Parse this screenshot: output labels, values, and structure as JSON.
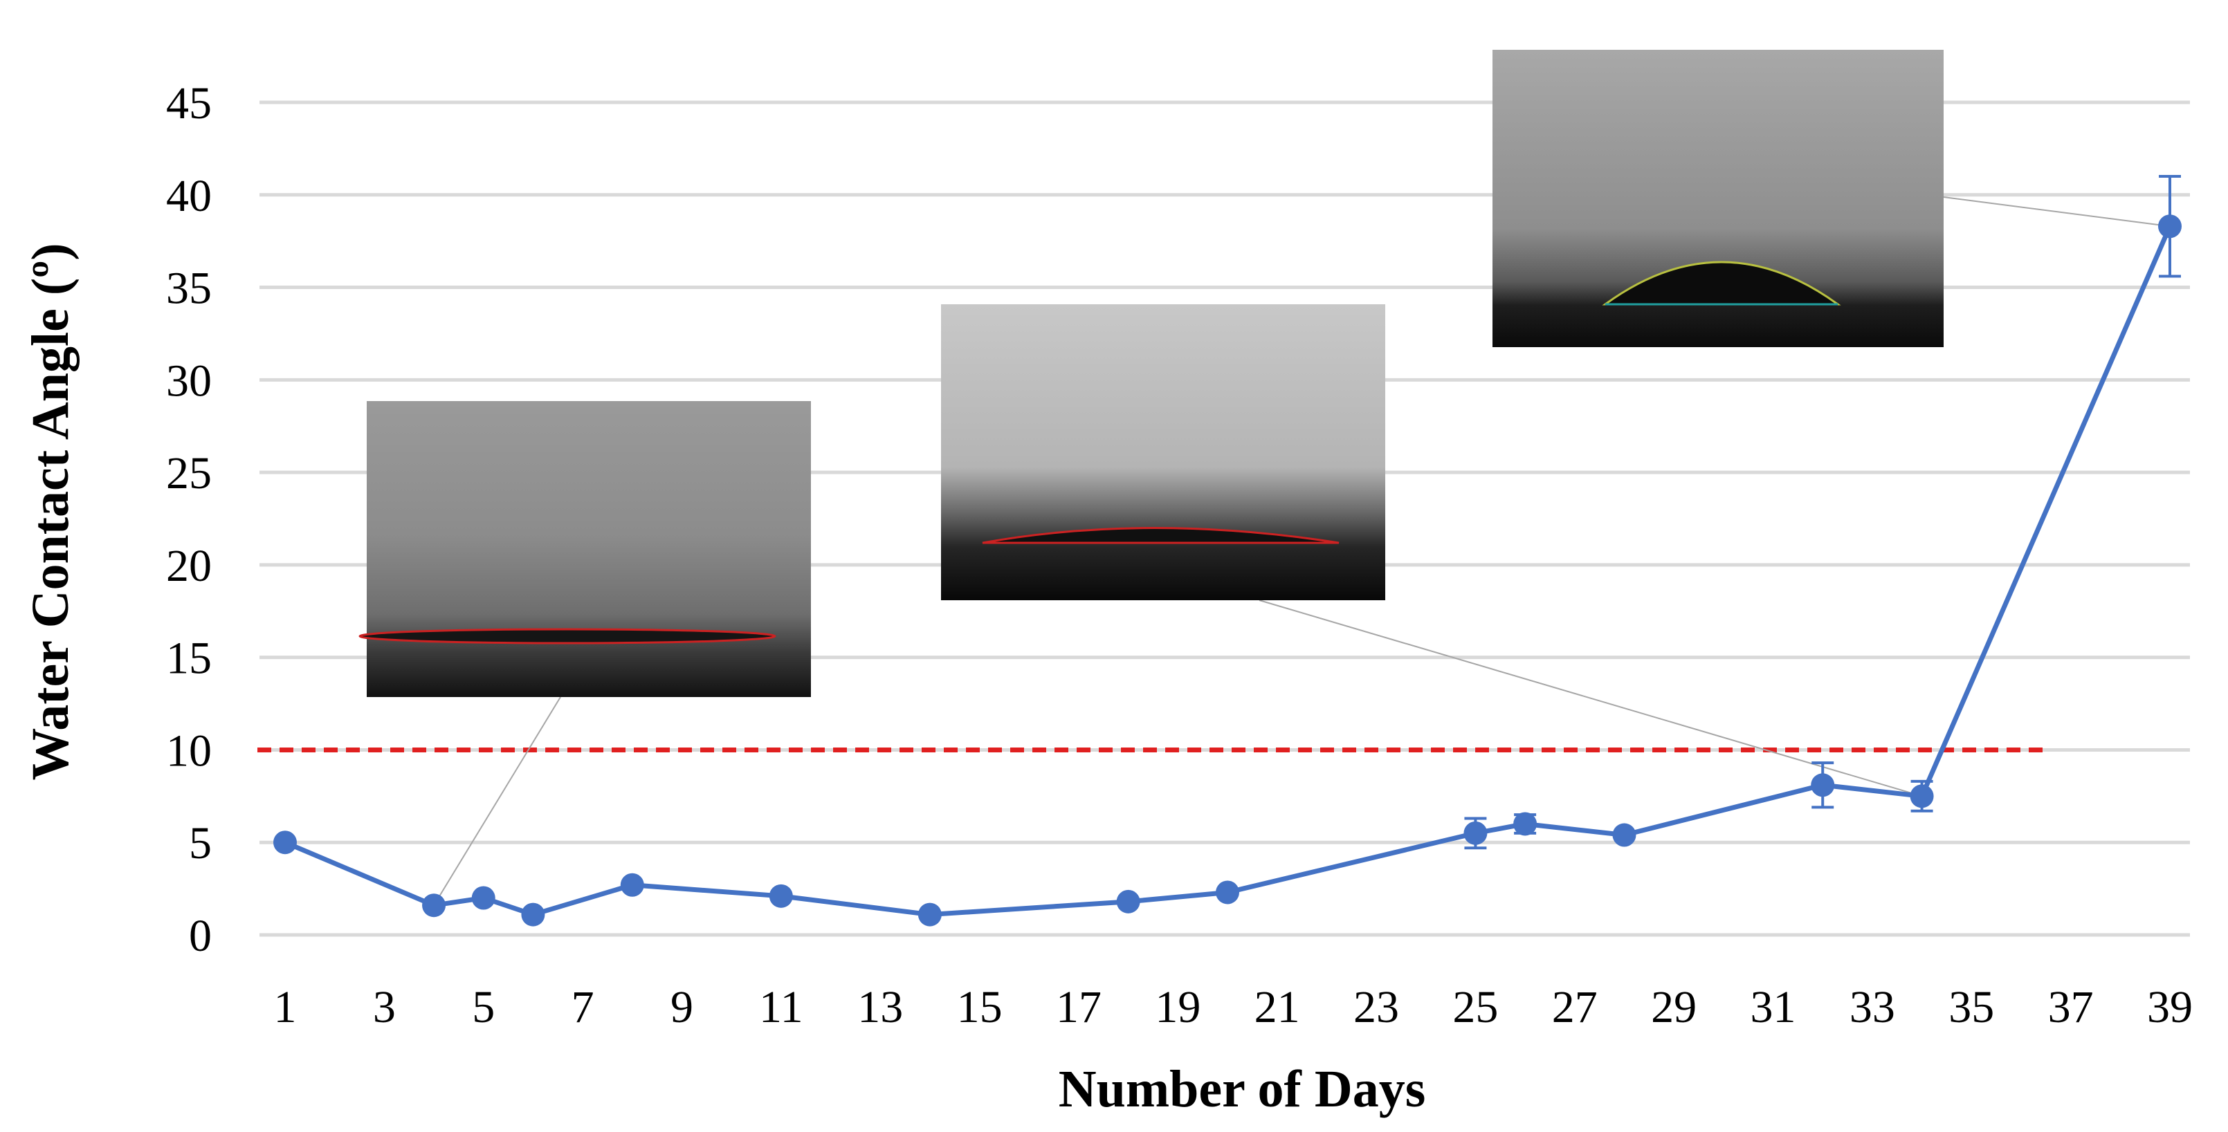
{
  "chart_data": {
    "type": "line",
    "xlabel": "Number of Days",
    "ylabel": "Water Contact Angle (º)",
    "xlim": [
      1,
      39
    ],
    "ylim": [
      0,
      45
    ],
    "x_ticks": [
      1,
      3,
      5,
      7,
      9,
      11,
      13,
      15,
      17,
      19,
      21,
      23,
      25,
      27,
      29,
      31,
      33,
      35,
      37,
      39
    ],
    "y_ticks": [
      0,
      5,
      10,
      15,
      20,
      25,
      30,
      35,
      40,
      45
    ],
    "grid": true,
    "series": [
      {
        "color": "#4472C4",
        "x": [
          1,
          4,
          5,
          6,
          8,
          11,
          14,
          18,
          20,
          25,
          26,
          28,
          32,
          34,
          39
        ],
        "y": [
          5.0,
          1.6,
          2.0,
          1.1,
          2.7,
          2.1,
          1.1,
          1.8,
          2.3,
          5.5,
          6.0,
          5.4,
          8.1,
          7.5,
          38.3
        ],
        "error": [
          0,
          0,
          0,
          0,
          0,
          0,
          0,
          0,
          0,
          0.8,
          0.5,
          0,
          1.2,
          0.8,
          2.7
        ]
      }
    ],
    "threshold": {
      "y": 10,
      "x_start": 1,
      "x_end": 36.5,
      "color": "#E02020",
      "style": "dashed"
    },
    "insets": [
      {
        "name": "droplet-image-day-4",
        "points_to": {
          "x": 4,
          "y": 1.6
        },
        "shape": "flat"
      },
      {
        "name": "droplet-image-day-34",
        "points_to": {
          "x": 34,
          "y": 7.5
        },
        "shape": "low"
      },
      {
        "name": "droplet-image-day-39",
        "points_to": {
          "x": 39,
          "y": 38.3
        },
        "shape": "dome"
      }
    ]
  }
}
